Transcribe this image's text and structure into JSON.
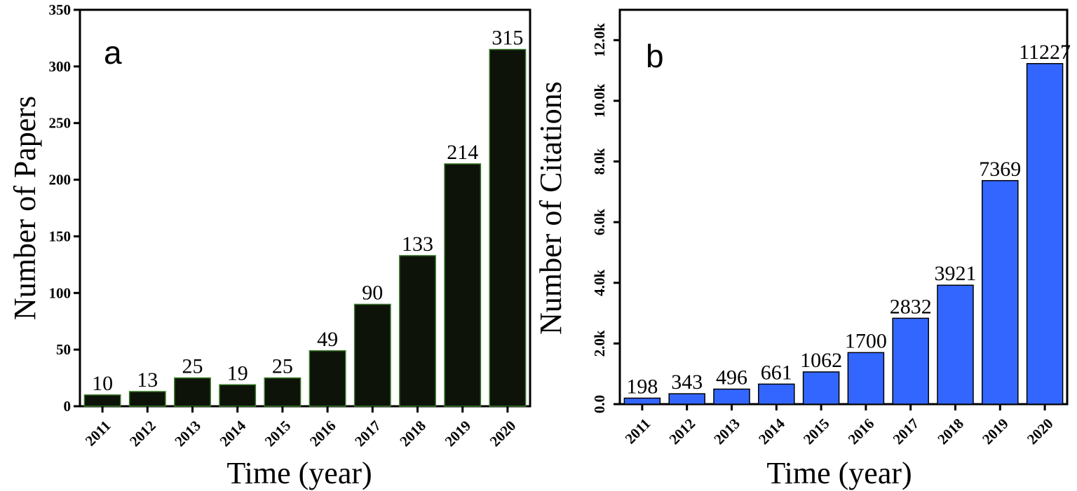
{
  "chart_data": [
    {
      "type": "bar",
      "panel_label": "a",
      "categories": [
        "2011",
        "2012",
        "2013",
        "2014",
        "2015",
        "2016",
        "2017",
        "2018",
        "2019",
        "2020"
      ],
      "values": [
        10,
        13,
        25,
        19,
        25,
        49,
        90,
        133,
        214,
        315
      ],
      "value_labels": [
        "10",
        "13",
        "25",
        "19",
        "25",
        "49",
        "90",
        "133",
        "214",
        "315"
      ],
      "xlabel": "Time (year)",
      "ylabel": "Number of Papers",
      "ylim": [
        0,
        350
      ],
      "yticks": [
        0,
        50,
        100,
        150,
        200,
        250,
        300,
        350
      ],
      "ytick_labels": [
        "0",
        "50",
        "100",
        "150",
        "200",
        "250",
        "300",
        "350"
      ],
      "bar_color": "#0d1309",
      "bar_edge_color": "#3a7a2a",
      "grid": false,
      "legend": "none"
    },
    {
      "type": "bar",
      "panel_label": "b",
      "categories": [
        "2011",
        "2012",
        "2013",
        "2014",
        "2015",
        "2016",
        "2017",
        "2018",
        "2019",
        "2020"
      ],
      "values": [
        198,
        343,
        496,
        661,
        1062,
        1700,
        2832,
        3921,
        7369,
        11227
      ],
      "value_labels": [
        "198",
        "343",
        "496",
        "661",
        "1062",
        "1700",
        "2832",
        "3921",
        "7369",
        "11227"
      ],
      "xlabel": "Time (year)",
      "ylabel": "Number of Citations",
      "ylim": [
        0,
        13000
      ],
      "yticks": [
        0,
        2000,
        4000,
        6000,
        8000,
        10000,
        12000
      ],
      "ytick_labels": [
        "0.0",
        "2.0k",
        "4.0k",
        "6.0k",
        "8.0k",
        "10.0k",
        "12.0k"
      ],
      "bar_color": "#3366ff",
      "bar_edge_color": "#000000",
      "grid": false,
      "legend": "none"
    }
  ]
}
